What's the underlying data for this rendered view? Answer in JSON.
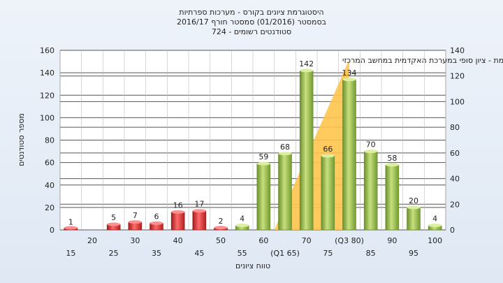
{
  "chart_data": {
    "type": "bar",
    "title_lines": [
      "היסטוגרמת ציונים בקורס - מערכות ספרתיות",
      "בסמסטר (01/2016) סמסטר חורף 2016/17",
      "סטודנטים רשומים - 724"
    ],
    "xlabel": "טווח ציונים",
    "ylabel": "מספר סטודנטים",
    "ylim": [
      0,
      160
    ],
    "y_ticks": [
      0,
      20,
      40,
      60,
      80,
      100,
      120,
      140,
      160
    ],
    "y2lim": [
      0,
      140
    ],
    "y2_ticks": [
      0,
      20,
      40,
      60,
      80,
      100,
      120,
      140
    ],
    "categories": [
      "15",
      "20",
      "25",
      "30",
      "35",
      "40",
      "45",
      "50",
      "55",
      "60",
      "65",
      "70",
      "75",
      "80",
      "85",
      "90",
      "95",
      "100"
    ],
    "category_labels": [
      "15",
      "20",
      "25",
      "30",
      "35",
      "40",
      "45",
      "50",
      "55",
      "60",
      "(Q1 65)",
      "70",
      "75",
      "(Q3 80)",
      "85",
      "90",
      "95",
      "100"
    ],
    "values": [
      1,
      0,
      5,
      7,
      6,
      16,
      17,
      2,
      4,
      59,
      68,
      142,
      66,
      134,
      70,
      58,
      20,
      4
    ],
    "value_labels": [
      "1",
      "",
      "5",
      "7",
      "6",
      "16",
      "17",
      "2",
      "4",
      "59",
      "68",
      "142",
      "66",
      "134",
      "70",
      "58",
      "20",
      "4"
    ],
    "bar_colors": [
      "#dd3333",
      "#dd3333",
      "#dd3333",
      "#dd3333",
      "#dd3333",
      "#dd3333",
      "#dd3333",
      "#dd3333",
      "#8fbc45",
      "#8fbc45",
      "#8fbc45",
      "#8fbc45",
      "#8fbc45",
      "#8fbc45",
      "#8fbc45",
      "#8fbc45",
      "#8fbc45",
      "#8fbc45"
    ],
    "interquartile_area": {
      "color": "#ffc44d",
      "from_category": "65",
      "to_category": "80",
      "peak_y2": 133
    },
    "annotation": "במשימת - ציון סופי במערכת האקדמית במחשב המרכזי",
    "grid": true
  }
}
